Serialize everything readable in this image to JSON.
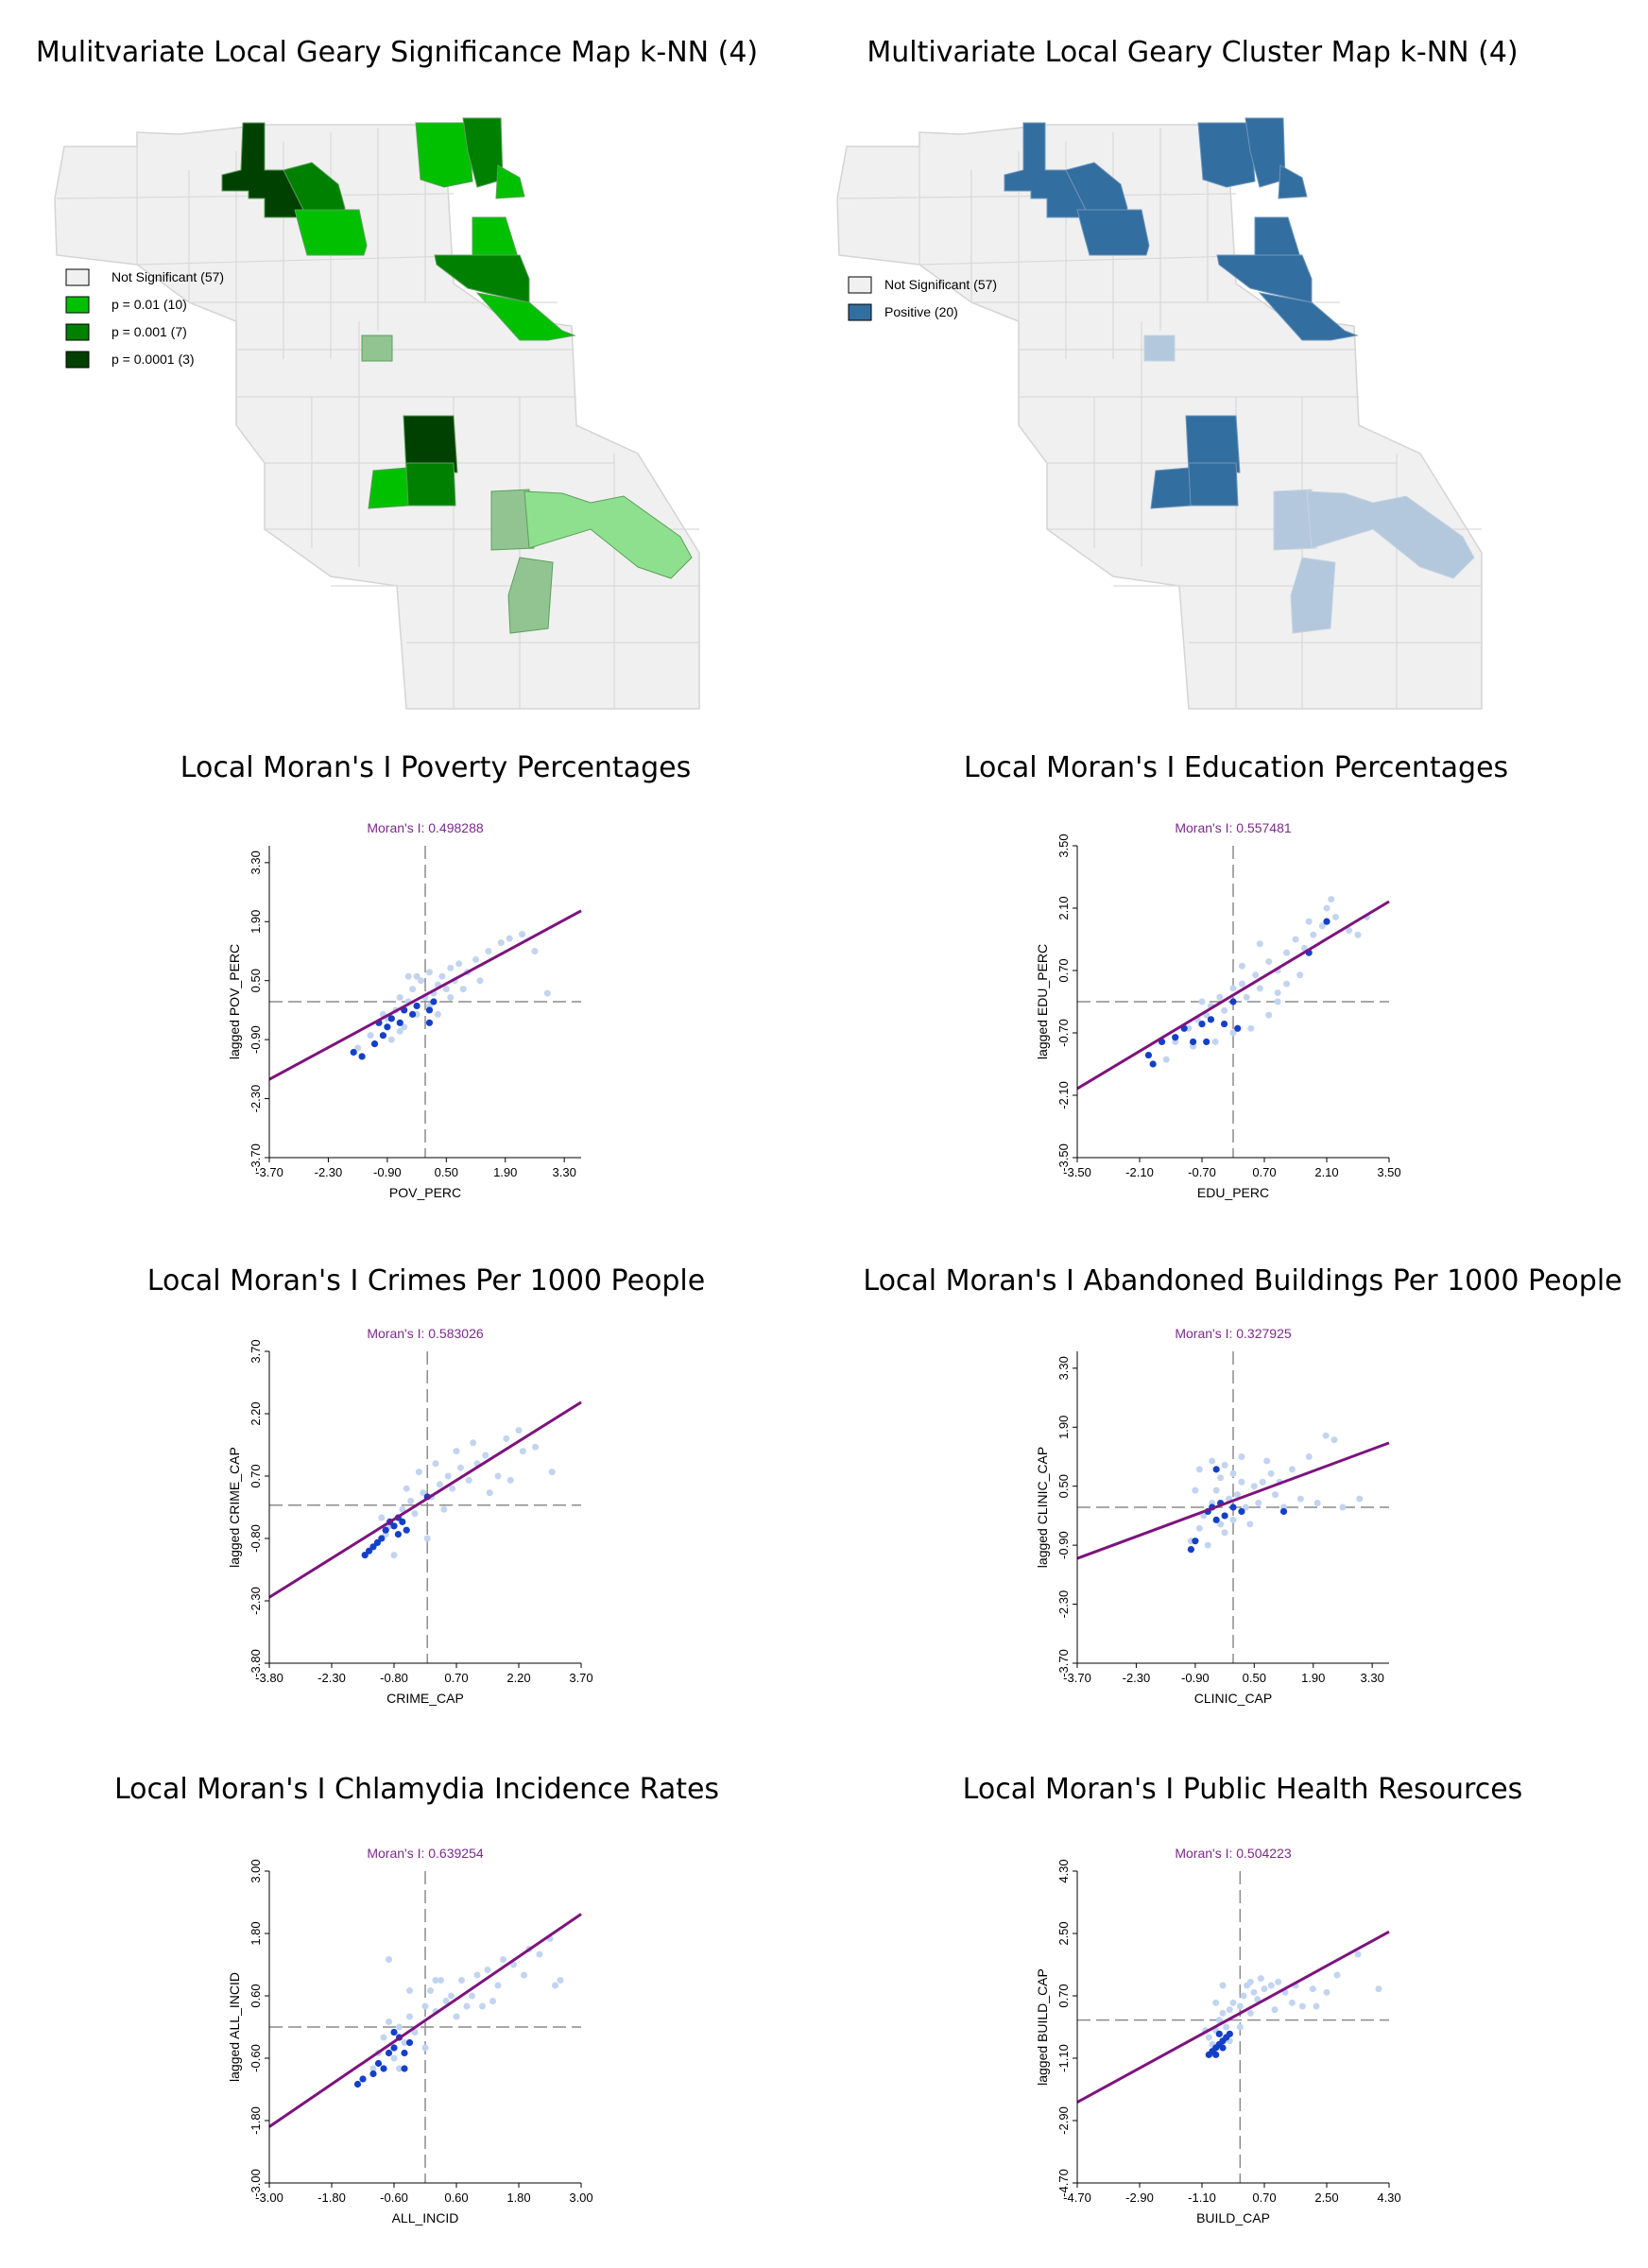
{
  "titles": {
    "sig_map": "Mulitvariate Local Geary Significance Map k-NN (4)",
    "cluster_map": "Multivariate Local Geary Cluster Map k-NN (4)",
    "pov": "Local Moran's I Poverty Percentages",
    "edu": "Local Moran's I Education Percentages",
    "crime": "Local Moran's I Crimes Per 1000 People",
    "aband": "Local Moran's I Abandoned Buildings Per 1000 People",
    "chlam": "Local Moran's I Chlamydia Incidence Rates",
    "health": "Local Moran's I Public Health Resources"
  },
  "sig_map": {
    "legend": [
      {
        "label": "Not Significant (57)",
        "color": "#f0f0f0"
      },
      {
        "label": "p = 0.01 (10)",
        "color": "#00c000"
      },
      {
        "label": "p = 0.001 (7)",
        "color": "#008000"
      },
      {
        "label": "p = 0.0001 (3)",
        "color": "#004000"
      }
    ]
  },
  "cluster_map": {
    "legend": [
      {
        "label": "Not Significant (57)",
        "color": "#f0f0f0"
      },
      {
        "label": "Positive (20)",
        "color": "#336ea0"
      }
    ]
  },
  "chart_data": [
    {
      "type": "scatter",
      "key": "pov",
      "annotation": "Moran's I: 0.498288",
      "xlabel": "POV_PERC",
      "ylabel": "lagged POV_PERC",
      "xlim": [
        -3.7,
        3.7
      ],
      "ylim": [
        -3.7,
        3.7
      ],
      "xticks": [
        "-3.70",
        "-2.30",
        "-0.90",
        "0.50",
        "1.90",
        "3.30"
      ],
      "yticks": [
        "-3.70",
        "-2.30",
        "-0.90",
        "0.50",
        "1.90",
        "3.30"
      ],
      "slope": 0.498288,
      "points_light": [
        [
          -1.6,
          -1.1
        ],
        [
          -1.3,
          -0.8
        ],
        [
          -1.1,
          -0.5
        ],
        [
          -0.9,
          -0.4
        ],
        [
          -0.7,
          -0.2
        ],
        [
          -0.6,
          0.1
        ],
        [
          -0.5,
          -0.6
        ],
        [
          -0.4,
          0.0
        ],
        [
          -0.3,
          0.3
        ],
        [
          -0.2,
          -0.3
        ],
        [
          -0.1,
          0.5
        ],
        [
          0.0,
          0.1
        ],
        [
          0.1,
          -0.1
        ],
        [
          0.2,
          0.2
        ],
        [
          0.3,
          0.4
        ],
        [
          0.4,
          0.6
        ],
        [
          0.5,
          0.3
        ],
        [
          0.6,
          0.8
        ],
        [
          0.7,
          0.5
        ],
        [
          0.8,
          0.9
        ],
        [
          1.0,
          0.7
        ],
        [
          1.2,
          1.0
        ],
        [
          1.5,
          1.2
        ],
        [
          1.8,
          1.4
        ],
        [
          2.0,
          1.5
        ],
        [
          2.3,
          1.6
        ],
        [
          2.6,
          1.2
        ],
        [
          2.9,
          0.2
        ],
        [
          -1.2,
          -1.0
        ],
        [
          -0.8,
          -0.9
        ],
        [
          -1.0,
          -0.3
        ],
        [
          -0.6,
          -0.7
        ],
        [
          -0.2,
          0.6
        ],
        [
          0.3,
          -0.3
        ],
        [
          0.6,
          0.1
        ],
        [
          1.3,
          0.5
        ],
        [
          -0.4,
          0.6
        ],
        [
          0.1,
          0.7
        ],
        [
          0.9,
          0.3
        ]
      ],
      "points_dark": [
        [
          -1.7,
          -1.2
        ],
        [
          -1.5,
          -1.3
        ],
        [
          -1.2,
          -1.0
        ],
        [
          -1.0,
          -0.8
        ],
        [
          -0.9,
          -0.6
        ],
        [
          -0.8,
          -0.4
        ],
        [
          -0.6,
          -0.5
        ],
        [
          -0.5,
          -0.2
        ],
        [
          -0.3,
          -0.3
        ],
        [
          -0.2,
          -0.1
        ],
        [
          0.1,
          -0.2
        ],
        [
          0.2,
          0.0
        ],
        [
          -1.1,
          -0.5
        ],
        [
          0.1,
          -0.5
        ]
      ]
    },
    {
      "type": "scatter",
      "key": "edu",
      "annotation": "Moran's I: 0.557481",
      "xlabel": "EDU_PERC",
      "ylabel": "lagged EDU_PERC",
      "xlim": [
        -3.5,
        3.5
      ],
      "ylim": [
        -3.5,
        3.5
      ],
      "xticks": [
        "-3.50",
        "-2.10",
        "-0.70",
        "0.70",
        "2.10",
        "3.50"
      ],
      "yticks": [
        "-3.50",
        "-2.10",
        "-0.70",
        "0.70",
        "2.10",
        "3.50"
      ],
      "slope": 0.557481,
      "points_light": [
        [
          -1.3,
          -0.9
        ],
        [
          -1.0,
          -0.6
        ],
        [
          -0.8,
          -0.4
        ],
        [
          -0.6,
          -0.3
        ],
        [
          -0.5,
          -0.1
        ],
        [
          -0.3,
          0.1
        ],
        [
          -0.2,
          -0.2
        ],
        [
          0.0,
          0.3
        ],
        [
          0.2,
          0.4
        ],
        [
          0.3,
          0.1
        ],
        [
          0.5,
          0.6
        ],
        [
          0.6,
          0.3
        ],
        [
          0.8,
          0.9
        ],
        [
          1.0,
          0.7
        ],
        [
          1.2,
          1.1
        ],
        [
          1.4,
          1.4
        ],
        [
          1.6,
          1.2
        ],
        [
          1.8,
          1.5
        ],
        [
          2.0,
          1.7
        ],
        [
          2.3,
          1.9
        ],
        [
          2.6,
          1.6
        ],
        [
          2.8,
          1.5
        ],
        [
          3.0,
          1.9
        ],
        [
          2.1,
          2.1
        ],
        [
          1.7,
          1.8
        ],
        [
          1.5,
          0.6
        ],
        [
          1.2,
          0.4
        ],
        [
          1.0,
          0.0
        ],
        [
          0.8,
          -0.3
        ],
        [
          0.4,
          -0.6
        ],
        [
          -0.4,
          -0.9
        ],
        [
          -0.9,
          -1.0
        ],
        [
          -1.5,
          -1.3
        ],
        [
          0.6,
          1.3
        ],
        [
          1.0,
          0.2
        ],
        [
          0.2,
          0.8
        ],
        [
          2.2,
          2.3
        ],
        [
          0.0,
          -0.7
        ],
        [
          -0.7,
          0.0
        ]
      ],
      "points_dark": [
        [
          -1.9,
          -1.2
        ],
        [
          -1.6,
          -0.9
        ],
        [
          -1.3,
          -0.8
        ],
        [
          -1.1,
          -0.6
        ],
        [
          -0.9,
          -0.9
        ],
        [
          -0.7,
          -0.5
        ],
        [
          -0.5,
          -0.4
        ],
        [
          -0.2,
          -0.5
        ],
        [
          0.0,
          0.0
        ],
        [
          0.1,
          -0.6
        ],
        [
          1.7,
          1.1
        ],
        [
          2.1,
          1.8
        ],
        [
          -1.8,
          -1.4
        ],
        [
          -0.6,
          -0.9
        ]
      ]
    },
    {
      "type": "scatter",
      "key": "crime",
      "annotation": "Moran's I: 0.583026",
      "xlabel": "CRIME_CAP",
      "ylabel": "lagged CRIME_CAP",
      "xlim": [
        -3.8,
        3.7
      ],
      "ylim": [
        -3.8,
        3.7
      ],
      "xticks": [
        "-3.80",
        "-2.30",
        "-0.80",
        "0.70",
        "2.20",
        "3.70"
      ],
      "yticks": [
        "-3.80",
        "-2.30",
        "-0.80",
        "0.70",
        "2.20",
        "3.70"
      ],
      "slope": 0.583026,
      "points_light": [
        [
          -1.3,
          -1.0
        ],
        [
          -1.0,
          -0.7
        ],
        [
          -0.9,
          -0.5
        ],
        [
          -0.7,
          -0.3
        ],
        [
          -0.6,
          -0.1
        ],
        [
          -0.4,
          0.1
        ],
        [
          -0.3,
          -0.2
        ],
        [
          -0.1,
          0.3
        ],
        [
          0.1,
          0.2
        ],
        [
          0.3,
          0.5
        ],
        [
          0.5,
          0.7
        ],
        [
          0.6,
          0.4
        ],
        [
          0.8,
          0.9
        ],
        [
          1.0,
          0.6
        ],
        [
          1.2,
          1.0
        ],
        [
          1.4,
          1.2
        ],
        [
          1.7,
          0.7
        ],
        [
          1.9,
          1.6
        ],
        [
          2.2,
          1.8
        ],
        [
          2.3,
          1.3
        ],
        [
          2.6,
          1.4
        ],
        [
          3.0,
          0.8
        ],
        [
          0.0,
          -0.8
        ],
        [
          -0.5,
          0.4
        ],
        [
          0.2,
          1.0
        ],
        [
          1.1,
          1.5
        ],
        [
          -0.8,
          -1.2
        ],
        [
          0.4,
          -0.1
        ],
        [
          1.5,
          0.3
        ],
        [
          2.0,
          0.6
        ],
        [
          -0.2,
          0.8
        ],
        [
          0.7,
          1.3
        ],
        [
          -1.1,
          -0.3
        ]
      ],
      "points_dark": [
        [
          -1.5,
          -1.2
        ],
        [
          -1.3,
          -1.0
        ],
        [
          -1.2,
          -0.9
        ],
        [
          -1.1,
          -0.8
        ],
        [
          -1.0,
          -0.6
        ],
        [
          -0.9,
          -0.4
        ],
        [
          -0.8,
          -0.5
        ],
        [
          -0.7,
          -0.3
        ],
        [
          -0.6,
          -0.4
        ],
        [
          -0.5,
          -0.6
        ],
        [
          0.0,
          0.2
        ],
        [
          -1.4,
          -1.1
        ],
        [
          -0.7,
          -0.7
        ]
      ]
    },
    {
      "type": "scatter",
      "key": "aband",
      "annotation": "Moran's I: 0.327925",
      "xlabel": "CLINIC_CAP",
      "ylabel": "lagged CLINIC_CAP",
      "xlim": [
        -3.7,
        3.7
      ],
      "ylim": [
        -3.7,
        3.7
      ],
      "xticks": [
        "-3.70",
        "-2.30",
        "-0.90",
        "0.50",
        "1.90",
        "3.30"
      ],
      "yticks": [
        "-3.70",
        "-2.30",
        "-0.90",
        "0.50",
        "1.90",
        "3.30"
      ],
      "slope": 0.327925,
      "points_light": [
        [
          -1.0,
          -0.8
        ],
        [
          -0.8,
          -0.5
        ],
        [
          -0.7,
          -0.2
        ],
        [
          -0.5,
          0.1
        ],
        [
          -0.4,
          0.4
        ],
        [
          -0.3,
          0.7
        ],
        [
          -0.2,
          1.0
        ],
        [
          -0.1,
          0.2
        ],
        [
          0.0,
          -0.3
        ],
        [
          0.1,
          0.3
        ],
        [
          0.2,
          0.6
        ],
        [
          0.3,
          0.0
        ],
        [
          0.5,
          0.5
        ],
        [
          0.6,
          0.1
        ],
        [
          0.8,
          1.1
        ],
        [
          0.9,
          0.8
        ],
        [
          1.0,
          0.3
        ],
        [
          1.2,
          0.0
        ],
        [
          1.4,
          0.9
        ],
        [
          1.6,
          0.2
        ],
        [
          1.8,
          1.2
        ],
        [
          2.0,
          0.1
        ],
        [
          2.2,
          1.7
        ],
        [
          2.4,
          1.6
        ],
        [
          2.6,
          0.0
        ],
        [
          3.0,
          0.2
        ],
        [
          -0.9,
          0.4
        ],
        [
          -0.6,
          -0.9
        ],
        [
          -0.2,
          -0.6
        ],
        [
          0.4,
          -0.4
        ],
        [
          0.7,
          0.6
        ],
        [
          -0.5,
          1.1
        ],
        [
          0.2,
          1.2
        ],
        [
          1.1,
          0.6
        ],
        [
          -0.8,
          0.9
        ],
        [
          0.0,
          0.8
        ],
        [
          -0.3,
          -0.4
        ]
      ],
      "points_dark": [
        [
          -1.0,
          -1.0
        ],
        [
          -0.9,
          -0.8
        ],
        [
          -0.6,
          -0.1
        ],
        [
          -0.5,
          0.0
        ],
        [
          -0.4,
          -0.3
        ],
        [
          -0.3,
          0.1
        ],
        [
          -0.2,
          -0.2
        ],
        [
          0.0,
          0.0
        ],
        [
          0.2,
          -0.1
        ],
        [
          -0.4,
          0.9
        ],
        [
          1.2,
          -0.1
        ]
      ]
    },
    {
      "type": "scatter",
      "key": "chlam",
      "annotation": "Moran's I: 0.639254",
      "xlabel": "ALL_INCID",
      "ylabel": "lagged ALL_INCID",
      "xlim": [
        -3.0,
        3.0
      ],
      "ylim": [
        -3.0,
        3.0
      ],
      "xticks": [
        "-3.00",
        "-1.80",
        "-0.60",
        "0.60",
        "1.80",
        "3.00"
      ],
      "yticks": [
        "-3.00",
        "-1.80",
        "-0.60",
        "0.60",
        "1.80",
        "3.00"
      ],
      "slope": 0.639254,
      "points_light": [
        [
          -1.0,
          -0.8
        ],
        [
          -0.9,
          -0.5
        ],
        [
          -0.8,
          -0.2
        ],
        [
          -0.7,
          0.1
        ],
        [
          -0.6,
          -0.6
        ],
        [
          -0.5,
          0.0
        ],
        [
          -0.4,
          -0.3
        ],
        [
          -0.3,
          0.2
        ],
        [
          -0.2,
          -0.1
        ],
        [
          0.0,
          0.4
        ],
        [
          0.1,
          0.7
        ],
        [
          0.2,
          0.3
        ],
        [
          0.3,
          0.9
        ],
        [
          0.5,
          0.6
        ],
        [
          0.6,
          0.2
        ],
        [
          0.7,
          0.9
        ],
        [
          0.9,
          0.6
        ],
        [
          1.0,
          1.0
        ],
        [
          1.1,
          0.4
        ],
        [
          1.2,
          1.1
        ],
        [
          1.4,
          0.8
        ],
        [
          1.5,
          1.3
        ],
        [
          1.7,
          1.2
        ],
        [
          1.9,
          1.0
        ],
        [
          2.0,
          1.5
        ],
        [
          2.2,
          1.4
        ],
        [
          2.4,
          1.7
        ],
        [
          2.5,
          0.8
        ],
        [
          2.6,
          0.9
        ],
        [
          -0.7,
          1.3
        ],
        [
          0.0,
          -0.4
        ],
        [
          0.4,
          0.5
        ],
        [
          0.8,
          0.4
        ],
        [
          -0.5,
          -0.8
        ],
        [
          0.2,
          0.9
        ],
        [
          1.3,
          0.5
        ],
        [
          -0.3,
          0.7
        ]
      ],
      "points_dark": [
        [
          -1.3,
          -1.1
        ],
        [
          -1.2,
          -1.0
        ],
        [
          -1.0,
          -0.9
        ],
        [
          -0.9,
          -0.7
        ],
        [
          -0.8,
          -0.8
        ],
        [
          -0.7,
          -0.5
        ],
        [
          -0.6,
          -0.4
        ],
        [
          -0.5,
          -0.2
        ],
        [
          -0.4,
          -0.5
        ],
        [
          -0.3,
          -0.3
        ],
        [
          -0.6,
          -0.1
        ],
        [
          -0.4,
          -0.8
        ]
      ]
    },
    {
      "type": "scatter",
      "key": "health",
      "annotation": "Moran's I: 0.504223",
      "xlabel": "BUILD_CAP",
      "ylabel": "lagged BUILD_CAP",
      "xlim": [
        -4.7,
        4.3
      ],
      "ylim": [
        -4.7,
        4.3
      ],
      "xticks": [
        "-4.70",
        "-2.90",
        "-1.10",
        "0.70",
        "2.50",
        "4.30"
      ],
      "yticks": [
        "-4.70",
        "-2.90",
        "-1.10",
        "0.70",
        "2.50",
        "4.30"
      ],
      "slope": 0.504223,
      "points_light": [
        [
          -0.9,
          -0.5
        ],
        [
          -0.7,
          -0.3
        ],
        [
          -0.6,
          0.0
        ],
        [
          -0.5,
          0.2
        ],
        [
          -0.4,
          -0.2
        ],
        [
          -0.3,
          0.3
        ],
        [
          -0.2,
          0.5
        ],
        [
          0.0,
          0.4
        ],
        [
          0.1,
          0.7
        ],
        [
          0.2,
          1.0
        ],
        [
          0.3,
          1.1
        ],
        [
          0.4,
          0.8
        ],
        [
          0.5,
          0.6
        ],
        [
          0.6,
          1.2
        ],
        [
          0.7,
          0.9
        ],
        [
          0.9,
          1.0
        ],
        [
          1.0,
          0.3
        ],
        [
          1.1,
          1.1
        ],
        [
          1.3,
          0.8
        ],
        [
          1.5,
          0.5
        ],
        [
          1.6,
          1.0
        ],
        [
          1.8,
          0.4
        ],
        [
          2.1,
          0.9
        ],
        [
          2.5,
          0.8
        ],
        [
          2.8,
          1.3
        ],
        [
          3.4,
          1.9
        ],
        [
          4.0,
          0.9
        ],
        [
          -0.8,
          -0.7
        ],
        [
          -0.3,
          -0.6
        ],
        [
          0.0,
          -0.2
        ],
        [
          -1.0,
          -0.3
        ],
        [
          -0.5,
          1.0
        ],
        [
          0.3,
          0.2
        ],
        [
          2.2,
          0.4
        ],
        [
          -0.7,
          0.5
        ]
      ],
      "points_dark": [
        [
          -0.9,
          -1.0
        ],
        [
          -0.8,
          -0.9
        ],
        [
          -0.7,
          -0.8
        ],
        [
          -0.6,
          -0.7
        ],
        [
          -0.5,
          -0.6
        ],
        [
          -0.4,
          -0.5
        ],
        [
          -0.6,
          -0.4
        ],
        [
          -0.5,
          -0.8
        ],
        [
          -0.3,
          -0.4
        ],
        [
          -0.7,
          -1.0
        ]
      ]
    }
  ]
}
